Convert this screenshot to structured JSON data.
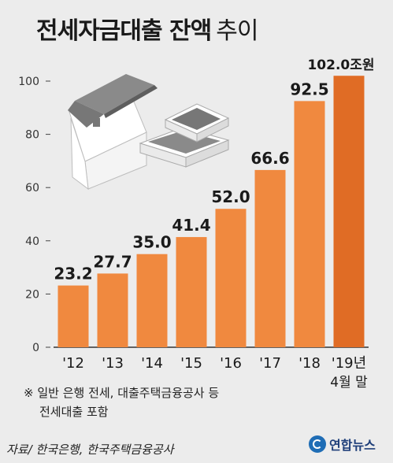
{
  "title": "전세자금대출 잔액",
  "subtitle": "추이",
  "note_line1": "※ 일반 은행 전세, 대출주택금융공사 등",
  "note_line2": "전세대출 포함",
  "source": "자료/ 한국은행, 한국주택금융공사",
  "logo_text": "연합뉴스",
  "colors": {
    "bar": "#f0893f",
    "bar_last": "#e06c25",
    "background": "#ececec"
  },
  "chart_data": {
    "type": "bar",
    "categories": [
      "'12",
      "'13",
      "'14",
      "'15",
      "'16",
      "'17",
      "'18",
      "'19년"
    ],
    "category_extra": [
      "",
      "",
      "",
      "",
      "",
      "",
      "",
      "4월 말"
    ],
    "values": [
      23.2,
      27.7,
      35.0,
      41.4,
      52.0,
      66.6,
      92.5,
      102.0
    ],
    "value_labels": [
      "23.2",
      "27.7",
      "35.0",
      "41.4",
      "52.0",
      "66.6",
      "92.5",
      "102.0조원"
    ],
    "yticks": [
      0,
      20,
      40,
      60,
      80,
      100
    ],
    "ylim": [
      0,
      100
    ],
    "grid": false,
    "highlight_last": true
  }
}
